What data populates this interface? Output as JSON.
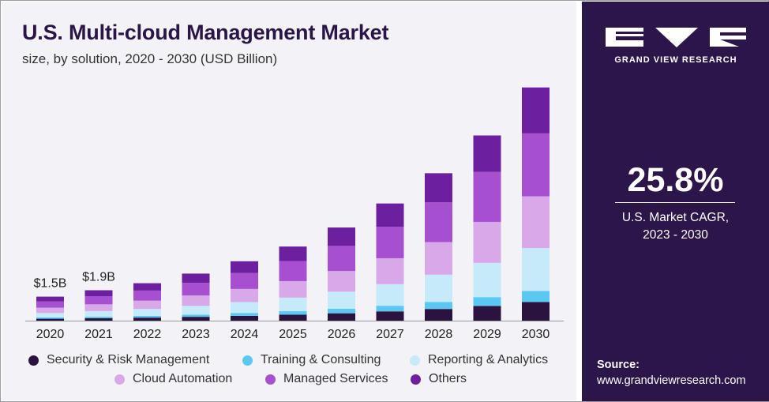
{
  "header": {
    "title": "U.S. Multi-cloud Management Market",
    "subtitle": "size, by solution, 2020 - 2030 (USD Billion)"
  },
  "brand": {
    "name": "GRAND VIEW RESEARCH"
  },
  "stat": {
    "value": "25.8%",
    "label_line1": "U.S. Market CAGR,",
    "label_line2": "2023 - 2030"
  },
  "source": {
    "label": "Source:",
    "url": "www.grandviewresearch.com"
  },
  "chart_data": {
    "type": "bar",
    "stacked": true,
    "categories": [
      "2020",
      "2021",
      "2022",
      "2023",
      "2024",
      "2025",
      "2026",
      "2027",
      "2028",
      "2029",
      "2030"
    ],
    "series": [
      {
        "name": "Security & Risk Management",
        "color": "#2b1340",
        "values": [
          0.12,
          0.15,
          0.19,
          0.24,
          0.3,
          0.37,
          0.46,
          0.58,
          0.73,
          0.92,
          1.16
        ]
      },
      {
        "name": "Training & Consulting",
        "color": "#5bc8f2",
        "values": [
          0.08,
          0.1,
          0.11,
          0.14,
          0.18,
          0.22,
          0.28,
          0.35,
          0.44,
          0.55,
          0.69
        ]
      },
      {
        "name": "Reporting & Analytics",
        "color": "#c6eaf9",
        "values": [
          0.28,
          0.35,
          0.43,
          0.54,
          0.68,
          0.85,
          1.07,
          1.35,
          1.7,
          2.14,
          2.69
        ]
      },
      {
        "name": "Cloud Automation",
        "color": "#d8a8e9",
        "values": [
          0.33,
          0.42,
          0.52,
          0.65,
          0.82,
          1.03,
          1.29,
          1.62,
          2.04,
          2.56,
          3.23
        ]
      },
      {
        "name": "Managed Services",
        "color": "#a64fcf",
        "values": [
          0.4,
          0.51,
          0.63,
          0.79,
          1.0,
          1.25,
          1.57,
          1.97,
          2.48,
          3.12,
          3.93
        ]
      },
      {
        "name": "Others",
        "color": "#6c1f9e",
        "values": [
          0.29,
          0.37,
          0.46,
          0.58,
          0.73,
          0.91,
          1.15,
          1.45,
          1.82,
          2.28,
          2.87
        ]
      }
    ],
    "data_labels": [
      "$1.5B",
      "$1.9B"
    ],
    "legend_position": "bottom",
    "grid": false,
    "ylim": [
      0,
      15
    ]
  }
}
